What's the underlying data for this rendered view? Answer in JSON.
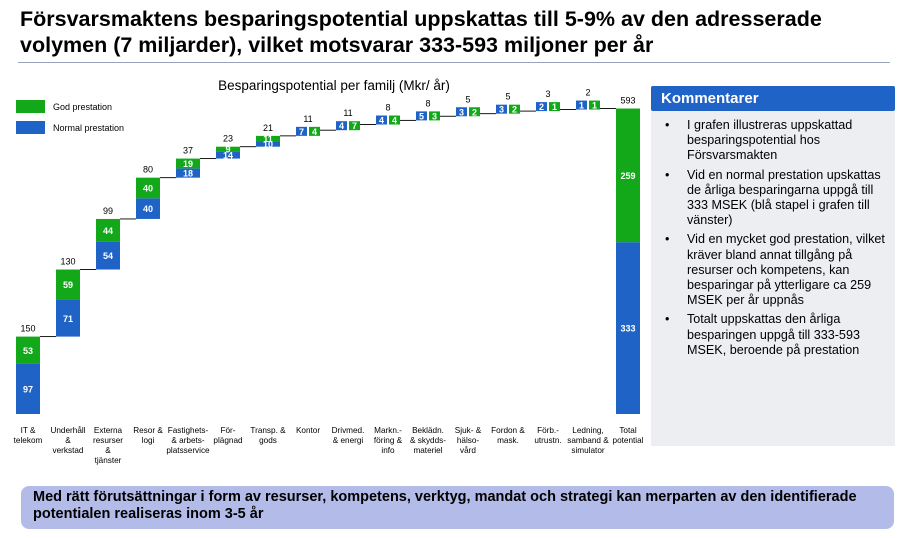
{
  "title": "Försvarsmaktens besparingspotential uppskattas till 5-9% av den adresserade volymen (7 miljarder), vilket motsvarar 333-593 miljoner per år",
  "comments": {
    "header": "Kommentarer",
    "items": [
      "I grafen illustreras uppskattad besparingspotential hos Försvarsmakten",
      "Vid en normal prestation upskattas de årliga besparingarna uppgå till 333 MSEK (blå stapel i grafen till vänster)",
      "Vid en mycket god prestation, vilket kräver bland annat tillgång på resurser och kompetens, kan besparingar på ytterligare ca 259 MSEK per år uppnås",
      "Totalt uppskattas den årliga besparingen uppgå till 333-593 MSEK, beroende på prestation"
    ]
  },
  "conclusion": "Med rätt förutsättningar i form av resurser, kompetens, verktyg, mandat och strategi kan merparten av den identifierade potentialen realiseras inom 3-5 år",
  "colors": {
    "good": "#13a81a",
    "normal": "#1f63c6"
  },
  "chart_data": {
    "type": "bar",
    "subtype": "waterfall",
    "title": "Besparingspotential per familj (Mkr/ år)",
    "legend_position": "top-left",
    "ylim": [
      0,
      593
    ],
    "categories": [
      "IT & telekom",
      "Underhåll & verkstad",
      "Externa resurser & tjänster",
      "Resor & logi",
      "Fastighets- & arbets- platsservice",
      "För- plägnad",
      "Transp. & gods",
      "Kontor",
      "Drivmed. & energi",
      "Markn.- föring & info",
      "Beklädn. & skydds- materiel",
      "Sjuk- & hälso- vård",
      "Fordon & mask.",
      "Förb.- utrustn.",
      "Ledning, samband & simulator",
      "Total potential"
    ],
    "series": [
      {
        "name": "Normal prestation",
        "values": [
          97,
          71,
          54,
          40,
          18,
          14,
          10,
          7,
          4,
          4,
          5,
          3,
          3,
          2,
          1,
          333
        ]
      },
      {
        "name": "God prestation",
        "values": [
          53,
          59,
          44,
          40,
          19,
          9,
          11,
          4,
          7,
          4,
          3,
          2,
          2,
          1,
          1,
          259
        ]
      }
    ],
    "bar_labels_normal": [
      "97",
      "71",
      "54",
      "40",
      "18",
      "14",
      "10",
      "7",
      "4",
      "4",
      "5",
      "3",
      "3",
      "2",
      "1",
      "333"
    ],
    "bar_labels_good": [
      "53",
      "59",
      "44",
      "40",
      "19",
      "9",
      "11",
      "4",
      "7",
      "4",
      "3",
      "2",
      "2",
      "1",
      "1",
      "259"
    ],
    "totals": [
      "150",
      "130",
      "99",
      "80",
      "37",
      "23",
      "21",
      "11",
      "11",
      "8",
      "8",
      "5",
      "5",
      "3",
      "2",
      "593"
    ],
    "legend": [
      "God prestation",
      "Normal prestation"
    ]
  }
}
